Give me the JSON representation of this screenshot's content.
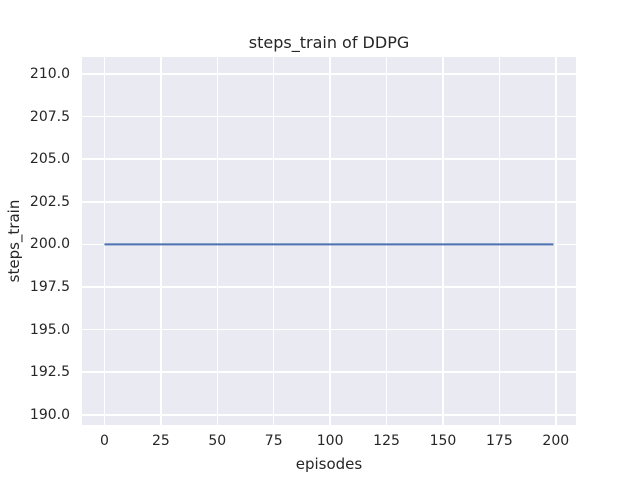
{
  "chart_data": {
    "type": "line",
    "title": "steps_train of DDPG",
    "xlabel": "episodes",
    "ylabel": "steps_train",
    "xlim": [
      -9.95,
      208.95
    ],
    "ylim": [
      189.4,
      211.0
    ],
    "x_ticks": {
      "values": [
        0,
        25,
        50,
        75,
        100,
        125,
        150,
        175,
        200
      ],
      "labels": [
        "0",
        "25",
        "50",
        "75",
        "100",
        "125",
        "150",
        "175",
        "200"
      ]
    },
    "y_ticks": {
      "values": [
        190.0,
        192.5,
        195.0,
        197.5,
        200.0,
        202.5,
        205.0,
        207.5,
        210.0
      ],
      "labels": [
        "190.0",
        "192.5",
        "195.0",
        "197.5",
        "200.0",
        "202.5",
        "205.0",
        "207.5",
        "210.0"
      ]
    },
    "grid": true,
    "legend": "none",
    "style": {
      "figure_bg": "#ffffff",
      "axes_bg": "#eaeaf2",
      "grid_color": "#ffffff",
      "text_color": "#262626"
    },
    "series": [
      {
        "name": "steps_train",
        "color": "#4c72b0",
        "line_width": 2,
        "x": [
          0,
          199
        ],
        "y": [
          200,
          200
        ]
      }
    ]
  }
}
